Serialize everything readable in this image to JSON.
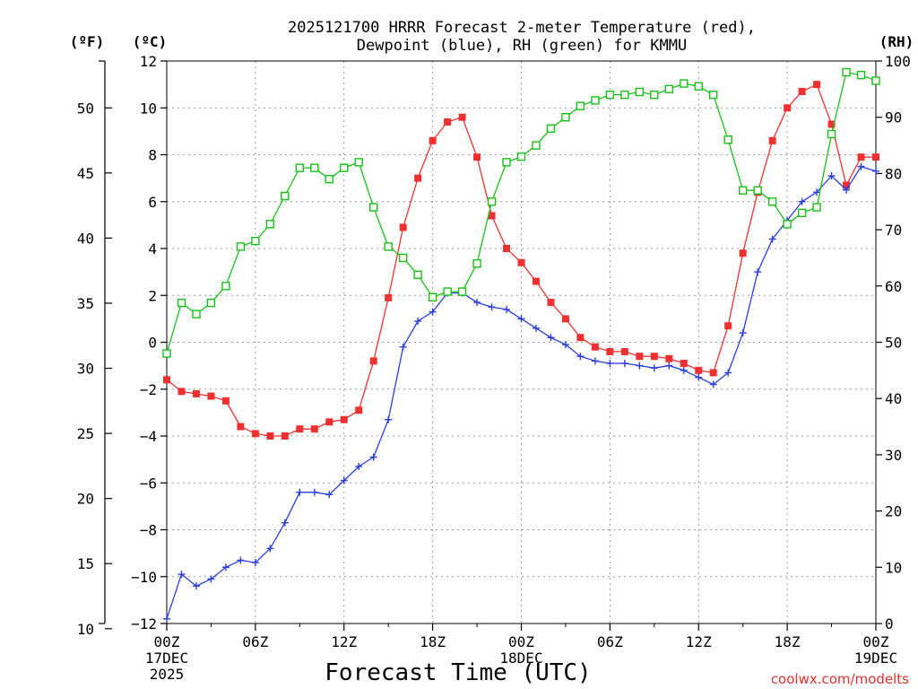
{
  "chart_data": {
    "type": "line",
    "title": [
      "2025121700 HRRR Forecast 2-meter Temperature (red),",
      "Dewpoint (blue), RH (green) for KMMU"
    ],
    "xlabel": "Forecast Time (UTC)",
    "credit": "coolwx.com/modelts",
    "unit_labels": {
      "fahrenheit": "(ºF)",
      "celsius": "(ºC)",
      "rh": "(RH)"
    },
    "x_unit": "forecast hour",
    "xlim": [
      0,
      48
    ],
    "x_ticks": [
      {
        "x": 0,
        "lines": [
          "00Z",
          "17DEC",
          "2025"
        ]
      },
      {
        "x": 6,
        "lines": [
          "06Z"
        ]
      },
      {
        "x": 12,
        "lines": [
          "12Z"
        ]
      },
      {
        "x": 18,
        "lines": [
          "18Z"
        ]
      },
      {
        "x": 24,
        "lines": [
          "00Z",
          "18DEC"
        ]
      },
      {
        "x": 30,
        "lines": [
          "06Z"
        ]
      },
      {
        "x": 36,
        "lines": [
          "12Z"
        ]
      },
      {
        "x": 42,
        "lines": [
          "18Z"
        ]
      },
      {
        "x": 48,
        "lines": [
          "00Z",
          "19DEC"
        ]
      }
    ],
    "y_left_celsius": {
      "ylim": [
        -12,
        12
      ],
      "ticks": [
        -12,
        -10,
        -8,
        -6,
        -4,
        -2,
        0,
        2,
        4,
        6,
        8,
        10,
        12
      ]
    },
    "y_left_fahrenheit": {
      "ylim": [
        10.4,
        53.6
      ],
      "ticks": [
        10,
        15,
        20,
        25,
        30,
        35,
        40,
        45,
        50
      ]
    },
    "y_right_rh": {
      "ylim": [
        0,
        100
      ],
      "ticks": [
        0,
        10,
        20,
        30,
        40,
        50,
        60,
        70,
        80,
        90,
        100
      ]
    },
    "grid": true,
    "series": [
      {
        "key": "temperature",
        "axis": "celsius",
        "color": "#ef3030",
        "marker": "filled-square",
        "x": [
          0,
          1,
          2,
          3,
          4,
          5,
          6,
          7,
          8,
          9,
          10,
          11,
          12,
          13,
          14,
          15,
          16,
          17,
          18,
          19,
          20,
          21,
          22,
          23,
          24,
          25,
          26,
          27,
          28,
          29,
          30,
          31,
          32,
          33,
          34,
          35,
          36,
          37,
          38,
          39,
          40,
          41,
          42,
          43,
          44,
          45,
          46,
          47,
          48
        ],
        "values": [
          -1.6,
          -2.1,
          -2.2,
          -2.3,
          -2.5,
          -3.6,
          -3.9,
          -4.0,
          -4.0,
          -3.7,
          -3.7,
          -3.4,
          -3.3,
          -2.9,
          -0.8,
          1.9,
          4.9,
          7.0,
          8.6,
          9.4,
          9.6,
          7.9,
          5.4,
          4.0,
          3.4,
          2.6,
          1.7,
          1.0,
          0.2,
          -0.2,
          -0.4,
          -0.4,
          -0.6,
          -0.6,
          -0.7,
          -0.9,
          -1.2,
          -1.3,
          0.7,
          3.8,
          6.4,
          8.6,
          10.0,
          10.7,
          11.0,
          9.3,
          6.7,
          7.9,
          7.9
        ]
      },
      {
        "key": "dewpoint",
        "axis": "celsius",
        "color": "#2a3ee0",
        "marker": "plus",
        "x": [
          0,
          1,
          2,
          3,
          4,
          5,
          6,
          7,
          8,
          9,
          10,
          11,
          12,
          13,
          14,
          15,
          16,
          17,
          18,
          19,
          20,
          21,
          22,
          23,
          24,
          25,
          26,
          27,
          28,
          29,
          30,
          31,
          32,
          33,
          34,
          35,
          36,
          37,
          38,
          39,
          40,
          41,
          42,
          43,
          44,
          45,
          46,
          47,
          48
        ],
        "values": [
          -11.8,
          -9.9,
          -10.4,
          -10.1,
          -9.6,
          -9.3,
          -9.4,
          -8.8,
          -7.7,
          -6.4,
          -6.4,
          -6.5,
          -5.9,
          -5.3,
          -4.9,
          -3.3,
          -0.2,
          0.9,
          1.3,
          2.1,
          2.1,
          1.7,
          1.5,
          1.4,
          1.0,
          0.6,
          0.2,
          -0.1,
          -0.6,
          -0.8,
          -0.9,
          -0.9,
          -1.0,
          -1.1,
          -1.0,
          -1.2,
          -1.5,
          -1.8,
          -1.3,
          0.4,
          3.0,
          4.4,
          5.2,
          6.0,
          6.4,
          7.1,
          6.5,
          7.5,
          7.3
        ]
      },
      {
        "key": "rh",
        "axis": "rh",
        "color": "#17c017",
        "marker": "open-square",
        "x": [
          0,
          1,
          2,
          3,
          4,
          5,
          6,
          7,
          8,
          9,
          10,
          11,
          12,
          13,
          14,
          15,
          16,
          17,
          18,
          19,
          20,
          21,
          22,
          23,
          24,
          25,
          26,
          27,
          28,
          29,
          30,
          31,
          32,
          33,
          34,
          35,
          36,
          37,
          38,
          39,
          40,
          41,
          42,
          43,
          44,
          45,
          46,
          47,
          48
        ],
        "values": [
          48,
          57,
          55,
          57,
          60,
          67,
          68,
          71,
          76,
          81,
          81,
          79,
          81,
          82,
          74,
          67,
          65,
          62,
          58,
          59,
          59,
          64,
          75,
          82,
          83,
          85,
          88,
          90,
          92,
          93,
          94,
          94,
          94.5,
          94,
          95,
          96,
          95.5,
          94,
          86,
          77,
          77,
          75,
          71,
          73,
          74,
          87,
          98,
          97.5,
          96.5
        ]
      }
    ]
  }
}
